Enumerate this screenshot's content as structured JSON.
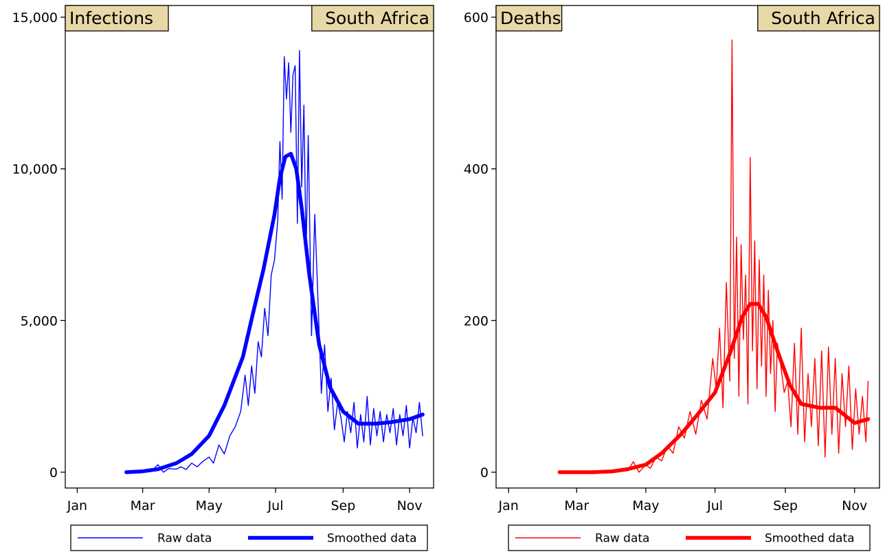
{
  "chart_data": [
    {
      "type": "line",
      "title": "Infections",
      "subtitle": "South Africa",
      "xlabel": "",
      "ylabel": "",
      "x_ticks": [
        "Jan",
        "Mar",
        "May",
        "Jul",
        "Sep",
        "Nov"
      ],
      "y_ticks": [
        "0",
        "5,000",
        "10,000",
        "15,000"
      ],
      "y_tick_values": [
        0,
        5000,
        10000,
        15000
      ],
      "ylim": [
        0,
        15000
      ],
      "grid": false,
      "legend_position": "bottom",
      "colors": {
        "raw": "#0000ff",
        "smoothed": "#0000ff"
      },
      "series": [
        {
          "name": "Raw data",
          "style": "thin",
          "x": [
            "2020-02-15",
            "2020-03-01",
            "2020-03-10",
            "2020-03-15",
            "2020-03-20",
            "2020-03-25",
            "2020-04-01",
            "2020-04-05",
            "2020-04-10",
            "2020-04-15",
            "2020-04-20",
            "2020-04-25",
            "2020-05-01",
            "2020-05-05",
            "2020-05-10",
            "2020-05-15",
            "2020-05-20",
            "2020-05-25",
            "2020-05-30",
            "2020-06-03",
            "2020-06-06",
            "2020-06-09",
            "2020-06-12",
            "2020-06-15",
            "2020-06-18",
            "2020-06-21",
            "2020-06-24",
            "2020-06-27",
            "2020-06-30",
            "2020-07-03",
            "2020-07-05",
            "2020-07-07",
            "2020-07-09",
            "2020-07-11",
            "2020-07-13",
            "2020-07-15",
            "2020-07-17",
            "2020-07-19",
            "2020-07-21",
            "2020-07-23",
            "2020-07-25",
            "2020-07-27",
            "2020-07-29",
            "2020-07-31",
            "2020-08-03",
            "2020-08-06",
            "2020-08-09",
            "2020-08-12",
            "2020-08-15",
            "2020-08-18",
            "2020-08-21",
            "2020-08-24",
            "2020-08-27",
            "2020-08-30",
            "2020-09-02",
            "2020-09-05",
            "2020-09-08",
            "2020-09-11",
            "2020-09-14",
            "2020-09-17",
            "2020-09-20",
            "2020-09-23",
            "2020-09-26",
            "2020-09-29",
            "2020-10-02",
            "2020-10-05",
            "2020-10-08",
            "2020-10-11",
            "2020-10-14",
            "2020-10-17",
            "2020-10-20",
            "2020-10-23",
            "2020-10-26",
            "2020-10-29",
            "2020-11-01",
            "2020-11-04",
            "2020-11-07",
            "2020-11-10",
            "2020-11-13"
          ],
          "y": [
            0,
            0,
            60,
            250,
            0,
            120,
            100,
            180,
            90,
            300,
            180,
            350,
            500,
            300,
            900,
            600,
            1200,
            1500,
            2000,
            3200,
            2200,
            3500,
            2600,
            4300,
            3800,
            5400,
            4500,
            6500,
            7000,
            8300,
            10900,
            9000,
            13700,
            12300,
            13500,
            11200,
            13100,
            13400,
            8200,
            13900,
            9400,
            12100,
            7200,
            11100,
            4500,
            8500,
            5600,
            2600,
            4200,
            2000,
            3100,
            1400,
            2300,
            1800,
            1000,
            2000,
            1300,
            2300,
            800,
            1900,
            1000,
            2500,
            900,
            2100,
            1200,
            2000,
            1000,
            1900,
            1300,
            2100,
            900,
            1900,
            1200,
            2200,
            800,
            1800,
            1300,
            2300,
            1200
          ]
        },
        {
          "name": "Smoothed data",
          "style": "thick",
          "x": [
            "2020-02-15",
            "2020-03-01",
            "2020-03-15",
            "2020-04-01",
            "2020-04-15",
            "2020-05-01",
            "2020-05-15",
            "2020-06-01",
            "2020-06-10",
            "2020-06-20",
            "2020-06-30",
            "2020-07-05",
            "2020-07-10",
            "2020-07-15",
            "2020-07-20",
            "2020-07-25",
            "2020-08-01",
            "2020-08-10",
            "2020-08-20",
            "2020-09-01",
            "2020-09-15",
            "2020-10-01",
            "2020-10-15",
            "2020-11-01",
            "2020-11-13"
          ],
          "y": [
            0,
            30,
            100,
            300,
            600,
            1200,
            2200,
            3800,
            5200,
            6700,
            8500,
            9700,
            10400,
            10500,
            10000,
            8700,
            6500,
            4200,
            2800,
            2000,
            1600,
            1600,
            1650,
            1750,
            1900
          ]
        }
      ]
    },
    {
      "type": "line",
      "title": "Deaths",
      "subtitle": "South Africa",
      "xlabel": "",
      "ylabel": "",
      "x_ticks": [
        "Jan",
        "Mar",
        "May",
        "Jul",
        "Sep",
        "Nov"
      ],
      "y_ticks": [
        "0",
        "200",
        "400",
        "600"
      ],
      "y_tick_values": [
        0,
        200,
        400,
        600
      ],
      "ylim": [
        0,
        600
      ],
      "grid": false,
      "legend_position": "bottom",
      "colors": {
        "raw": "#ff0000",
        "smoothed": "#ff0000"
      },
      "series": [
        {
          "name": "Raw data",
          "style": "thin",
          "x": [
            "2020-02-15",
            "2020-03-15",
            "2020-04-01",
            "2020-04-10",
            "2020-04-15",
            "2020-04-20",
            "2020-04-25",
            "2020-05-01",
            "2020-05-05",
            "2020-05-10",
            "2020-05-15",
            "2020-05-20",
            "2020-05-25",
            "2020-05-30",
            "2020-06-04",
            "2020-06-09",
            "2020-06-14",
            "2020-06-19",
            "2020-06-24",
            "2020-06-29",
            "2020-07-02",
            "2020-07-05",
            "2020-07-08",
            "2020-07-11",
            "2020-07-14",
            "2020-07-16",
            "2020-07-18",
            "2020-07-20",
            "2020-07-22",
            "2020-07-24",
            "2020-07-26",
            "2020-07-28",
            "2020-07-30",
            "2020-08-01",
            "2020-08-03",
            "2020-08-05",
            "2020-08-07",
            "2020-08-09",
            "2020-08-11",
            "2020-08-13",
            "2020-08-15",
            "2020-08-17",
            "2020-08-19",
            "2020-08-21",
            "2020-08-23",
            "2020-08-25",
            "2020-08-28",
            "2020-08-31",
            "2020-09-03",
            "2020-09-06",
            "2020-09-09",
            "2020-09-12",
            "2020-09-15",
            "2020-09-18",
            "2020-09-21",
            "2020-09-24",
            "2020-09-27",
            "2020-09-30",
            "2020-10-03",
            "2020-10-06",
            "2020-10-09",
            "2020-10-12",
            "2020-10-15",
            "2020-10-18",
            "2020-10-21",
            "2020-10-24",
            "2020-10-27",
            "2020-10-30",
            "2020-11-02",
            "2020-11-05",
            "2020-11-08",
            "2020-11-11",
            "2020-11-13"
          ],
          "y": [
            0,
            0,
            0,
            5,
            2,
            14,
            0,
            10,
            5,
            20,
            15,
            35,
            25,
            60,
            45,
            80,
            50,
            95,
            70,
            150,
            110,
            190,
            85,
            250,
            120,
            570,
            150,
            310,
            100,
            300,
            175,
            260,
            90,
            415,
            160,
            305,
            110,
            280,
            140,
            260,
            100,
            240,
            130,
            200,
            80,
            170,
            140,
            105,
            120,
            60,
            170,
            50,
            190,
            40,
            130,
            60,
            150,
            35,
            160,
            20,
            165,
            50,
            150,
            25,
            130,
            60,
            140,
            30,
            110,
            50,
            100,
            40,
            120
          ]
        },
        {
          "name": "Smoothed data",
          "style": "thick",
          "x": [
            "2020-02-15",
            "2020-03-15",
            "2020-04-01",
            "2020-04-15",
            "2020-05-01",
            "2020-05-15",
            "2020-06-01",
            "2020-06-15",
            "2020-07-01",
            "2020-07-15",
            "2020-07-25",
            "2020-08-01",
            "2020-08-08",
            "2020-08-15",
            "2020-08-25",
            "2020-09-05",
            "2020-09-15",
            "2020-10-01",
            "2020-10-15",
            "2020-11-01",
            "2020-11-13"
          ],
          "y": [
            0,
            0,
            1,
            4,
            10,
            25,
            50,
            75,
            105,
            160,
            205,
            222,
            222,
            205,
            160,
            115,
            90,
            85,
            85,
            65,
            70
          ]
        }
      ]
    }
  ]
}
